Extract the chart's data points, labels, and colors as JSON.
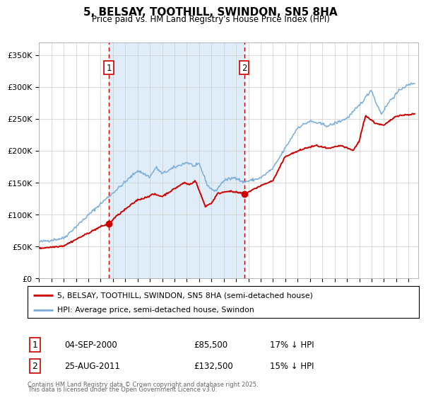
{
  "title": "5, BELSAY, TOOTHILL, SWINDON, SN5 8HA",
  "subtitle": "Price paid vs. HM Land Registry's House Price Index (HPI)",
  "legend_line1": "5, BELSAY, TOOTHILL, SWINDON, SN5 8HA (semi-detached house)",
  "legend_line2": "HPI: Average price, semi-detached house, Swindon",
  "annotation1_date": "04-SEP-2000",
  "annotation1_price": "£85,500",
  "annotation1_note": "17% ↓ HPI",
  "annotation2_date": "25-AUG-2011",
  "annotation2_price": "£132,500",
  "annotation2_note": "15% ↓ HPI",
  "footnote_line1": "Contains HM Land Registry data © Crown copyright and database right 2025.",
  "footnote_line2": "This data is licensed under the Open Government Licence v3.0.",
  "red_color": "#cc0000",
  "blue_color": "#7aadda",
  "shade_color": "#deedf8",
  "grid_color": "#cccccc",
  "vline_color": "#cc0000",
  "ylim": [
    0,
    370000
  ],
  "purchase1_year": 2000.67,
  "purchase1_price": 85500,
  "purchase2_year": 2011.65,
  "purchase2_price": 132500,
  "xmin": 1995,
  "xmax": 2025.8
}
